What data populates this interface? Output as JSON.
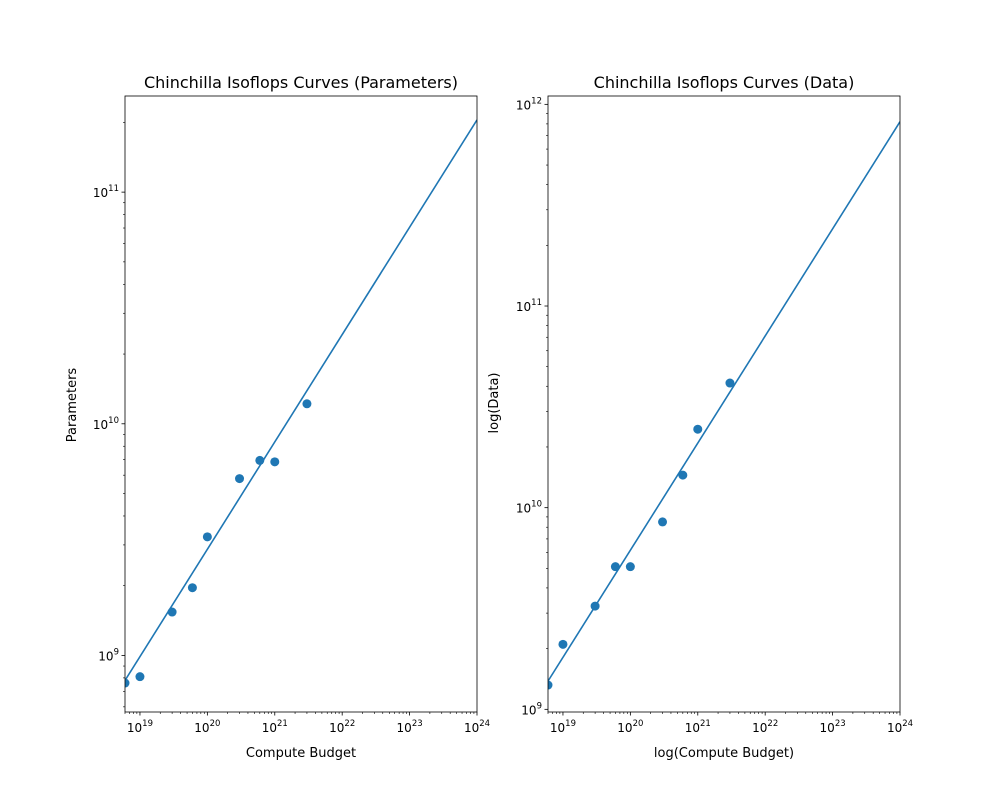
{
  "figure": {
    "colors": {
      "series": "#1f77b4",
      "axes": "#000000",
      "background": "#ffffff"
    }
  },
  "chart_data": [
    {
      "type": "scatter",
      "title": "Chinchilla Isoflops Curves (Parameters)",
      "xlabel": "Compute Budget",
      "ylabel": "Parameters",
      "xscale": "log",
      "yscale": "log",
      "xlim": [
        6e+18,
        1e+24
      ],
      "ylim": [
        570000000.0,
        260000000000.0
      ],
      "grid": false,
      "xticks": [
        {
          "value": 1e+19,
          "base": "10",
          "exp": "19"
        },
        {
          "value": 1e+20,
          "base": "10",
          "exp": "20"
        },
        {
          "value": 1e+21,
          "base": "10",
          "exp": "21"
        },
        {
          "value": 1e+22,
          "base": "10",
          "exp": "22"
        },
        {
          "value": 1e+23,
          "base": "10",
          "exp": "23"
        },
        {
          "value": 1e+24,
          "base": "10",
          "exp": "24"
        }
      ],
      "yticks": [
        {
          "value": 1000000000.0,
          "base": "10",
          "exp": "9"
        },
        {
          "value": 10000000000.0,
          "base": "10",
          "exp": "10"
        },
        {
          "value": 100000000000.0,
          "base": "10",
          "exp": "11"
        }
      ],
      "points": {
        "x": [
          6e+18,
          1e+19,
          3e+19,
          6e+19,
          1e+20,
          3e+20,
          6e+20,
          1e+21,
          3e+21
        ],
        "y": [
          760000000.0,
          810000000.0,
          1540000000.0,
          1960000000.0,
          3250000000.0,
          5800000000.0,
          6950000000.0,
          6850000000.0,
          12200000000.0
        ]
      },
      "fit_line": {
        "x": [
          6e+18,
          1e+24
        ],
        "y": [
          780000000.0,
          205000000000.0
        ]
      }
    },
    {
      "type": "scatter",
      "title": "Chinchilla Isoflops Curves (Data)",
      "xlabel": "log(Compute Budget)",
      "ylabel": "log(Data)",
      "xscale": "log",
      "yscale": "log",
      "xlim": [
        6e+18,
        1e+24
      ],
      "ylim": [
        970000000.0,
        1100000000000.0
      ],
      "grid": false,
      "xticks": [
        {
          "value": 1e+19,
          "base": "10",
          "exp": "19"
        },
        {
          "value": 1e+20,
          "base": "10",
          "exp": "20"
        },
        {
          "value": 1e+21,
          "base": "10",
          "exp": "21"
        },
        {
          "value": 1e+22,
          "base": "10",
          "exp": "22"
        },
        {
          "value": 1e+23,
          "base": "10",
          "exp": "23"
        },
        {
          "value": 1e+24,
          "base": "10",
          "exp": "24"
        }
      ],
      "yticks": [
        {
          "value": 1000000000.0,
          "base": "10",
          "exp": "9"
        },
        {
          "value": 10000000000.0,
          "base": "10",
          "exp": "10"
        },
        {
          "value": 100000000000.0,
          "base": "10",
          "exp": "11"
        },
        {
          "value": 1000000000000.0,
          "base": "10",
          "exp": "12"
        }
      ],
      "points": {
        "x": [
          6e+18,
          1e+19,
          3e+19,
          6e+19,
          1e+20,
          3e+20,
          6e+20,
          1e+21,
          3e+21
        ],
        "y": [
          1320000000.0,
          2100000000.0,
          3250000000.0,
          5100000000.0,
          5100000000.0,
          8500000000.0,
          14500000000.0,
          24500000000.0,
          41500000000.0
        ]
      },
      "fit_line": {
        "x": [
          6e+18,
          1e+24
        ],
        "y": [
          1380000000.0,
          820000000000.0
        ]
      }
    }
  ]
}
